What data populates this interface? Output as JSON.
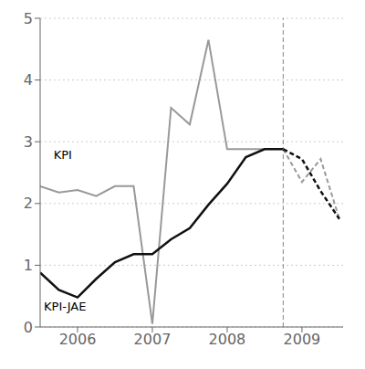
{
  "chart_data": {
    "type": "line",
    "title": "",
    "xlabel": "",
    "ylabel": "",
    "x": [
      2005.5,
      2005.75,
      2006,
      2006.25,
      2006.5,
      2006.75,
      2007,
      2007.25,
      2007.5,
      2007.75,
      2008,
      2008.25,
      2008.5,
      2008.75,
      2009,
      2009.25,
      2009.5
    ],
    "series": [
      {
        "name": "KPI",
        "color": "#999999",
        "line_style": "solid",
        "values": [
          2.28,
          2.18,
          2.22,
          2.12,
          2.28,
          2.28,
          0.05,
          3.55,
          3.28,
          4.65,
          2.88,
          2.88,
          2.88,
          2.88,
          null,
          null,
          null
        ]
      },
      {
        "name": "KPI-JAE",
        "color": "#111111",
        "line_style": "solid",
        "values": [
          0.88,
          0.6,
          0.48,
          0.78,
          1.05,
          1.18,
          1.18,
          1.42,
          1.6,
          1.98,
          2.32,
          2.75,
          2.88,
          2.88,
          null,
          null,
          null
        ]
      },
      {
        "name": "KPI",
        "color": "#999999",
        "line_style": "dashed",
        "values": [
          null,
          null,
          null,
          null,
          null,
          null,
          null,
          null,
          null,
          null,
          null,
          null,
          null,
          2.88,
          2.35,
          2.72,
          1.75
        ]
      },
      {
        "name": "KPI-JAE",
        "color": "#111111",
        "line_style": "dashed",
        "values": [
          null,
          null,
          null,
          null,
          null,
          null,
          null,
          null,
          null,
          null,
          null,
          null,
          null,
          2.88,
          2.72,
          2.2,
          1.75
        ]
      }
    ],
    "xlim": [
      2005.5,
      2009.55
    ],
    "xticks": [
      2006,
      2007,
      2008,
      2009
    ],
    "ylim": [
      0,
      5
    ],
    "yticks": [
      0,
      1,
      2,
      3,
      4,
      5
    ],
    "grid": true,
    "vline": 2008.75,
    "annotations": [
      {
        "text": "KPI",
        "x": 2005.68,
        "y": 2.68
      },
      {
        "text": "KPI-JAE",
        "x": 2005.55,
        "y": 0.22
      }
    ]
  }
}
